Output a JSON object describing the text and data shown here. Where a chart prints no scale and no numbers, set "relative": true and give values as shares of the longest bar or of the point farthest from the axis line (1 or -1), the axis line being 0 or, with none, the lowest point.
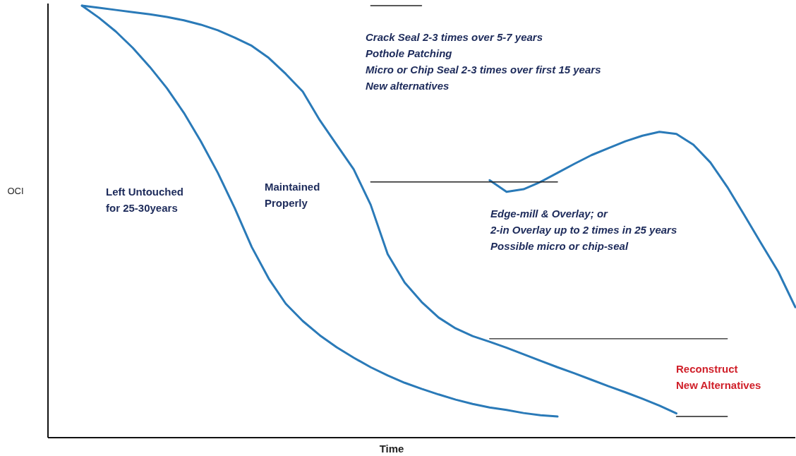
{
  "chart_data": {
    "type": "line",
    "relative": true,
    "xlabel": "Time",
    "ylabel": "OCI",
    "line_style": "solid",
    "categories": [
      null,
      null,
      null,
      null,
      null,
      null,
      null,
      null,
      null,
      null,
      null,
      null,
      null,
      null,
      null,
      null,
      null,
      null,
      null,
      null,
      null,
      null,
      null,
      null,
      null,
      null,
      null,
      null,
      null,
      null,
      null,
      null,
      null,
      null,
      null,
      null,
      null,
      null,
      null,
      null,
      null,
      null,
      null,
      null,
      null
    ],
    "series": [
      {
        "color": "#2a7ab8",
        "values": [
          null,
          null,
          1.0,
          0.972,
          0.94,
          0.902,
          0.858,
          0.809,
          0.752,
          0.686,
          0.613,
          0.531,
          0.441,
          0.368,
          0.31,
          0.27,
          0.237,
          0.209,
          0.185,
          0.163,
          0.144,
          0.127,
          0.113,
          0.1,
          0.088,
          0.078,
          0.07,
          0.064,
          0.057,
          0.052,
          0.049,
          null,
          null,
          null,
          null,
          null,
          null,
          null,
          null,
          null,
          null,
          null,
          null,
          null,
          null
        ]
      },
      {
        "color": "#2a7ab8",
        "values": [
          null,
          null,
          1.0,
          0.995,
          0.99,
          0.985,
          0.98,
          0.974,
          0.966,
          0.956,
          0.943,
          0.926,
          0.907,
          0.879,
          0.842,
          0.801,
          0.735,
          0.678,
          0.621,
          0.539,
          0.425,
          0.359,
          0.314,
          0.278,
          0.253,
          0.235,
          0.222,
          0.208,
          0.193,
          0.178,
          0.163,
          0.149,
          0.134,
          0.119,
          0.105,
          0.09,
          0.074,
          0.056,
          null,
          null,
          null,
          null,
          null,
          null,
          null
        ]
      },
      {
        "color": "#2a7ab8",
        "values": [
          null,
          null,
          null,
          null,
          null,
          null,
          null,
          null,
          null,
          null,
          null,
          null,
          null,
          null,
          null,
          null,
          null,
          null,
          null,
          null,
          null,
          null,
          null,
          null,
          null,
          null,
          0.596,
          0.569,
          0.575,
          0.592,
          0.613,
          0.634,
          0.654,
          0.67,
          0.686,
          0.699,
          0.708,
          0.703,
          0.678,
          0.637,
          0.58,
          0.515,
          0.449,
          0.384,
          0.302
        ]
      },
      {
        "color": "#222222",
        "values": [
          null,
          null,
          null,
          null,
          null,
          null,
          null,
          null,
          null,
          null,
          null,
          null,
          null,
          null,
          null,
          null,
          null,
          null,
          null,
          1.0,
          1.0,
          1.0,
          1.0,
          null,
          null,
          null,
          null,
          null,
          null,
          null,
          null,
          null,
          null,
          null,
          null,
          null,
          null,
          null,
          null,
          null,
          null,
          null,
          null,
          null,
          null
        ]
      },
      {
        "color": "#222222",
        "values": [
          null,
          null,
          null,
          null,
          null,
          null,
          null,
          null,
          null,
          null,
          null,
          null,
          null,
          null,
          null,
          null,
          null,
          null,
          null,
          0.592,
          0.592,
          0.592,
          0.592,
          0.592,
          0.592,
          0.592,
          0.592,
          0.592,
          0.592,
          0.592,
          0.592,
          null,
          null,
          null,
          null,
          null,
          null,
          null,
          null,
          null,
          null,
          null,
          null,
          null,
          null
        ]
      },
      {
        "color": "#222222",
        "values": [
          null,
          null,
          null,
          null,
          null,
          null,
          null,
          null,
          null,
          null,
          null,
          null,
          null,
          null,
          null,
          null,
          null,
          null,
          null,
          null,
          null,
          null,
          null,
          null,
          null,
          null,
          0.229,
          0.229,
          0.229,
          0.229,
          0.229,
          0.229,
          0.229,
          0.229,
          0.229,
          0.229,
          0.229,
          0.229,
          0.229,
          0.229,
          0.229,
          null,
          null,
          null,
          null
        ]
      },
      {
        "color": "#222222",
        "values": [
          null,
          null,
          null,
          null,
          null,
          null,
          null,
          null,
          null,
          null,
          null,
          null,
          null,
          null,
          null,
          null,
          null,
          null,
          null,
          null,
          null,
          null,
          null,
          null,
          null,
          null,
          null,
          null,
          null,
          null,
          null,
          null,
          null,
          null,
          null,
          null,
          null,
          0.049,
          0.049,
          0.049,
          0.049,
          null,
          null,
          null,
          null
        ]
      }
    ],
    "annotations": [
      "Crack Seal 2-3 times over 5-7 years\nPothole Patching\nMicro or Chip Seal 2-3 times over first 15 years\nNew alternatives",
      "Left Untouched\nfor 25-30years",
      "Maintained\nProperly",
      "Edge-mill & Overlay; or\n2-in Overlay up to 2 times in 25 years\nPossible micro or chip-seal",
      "Reconstruct\nNew Alternatives"
    ]
  }
}
